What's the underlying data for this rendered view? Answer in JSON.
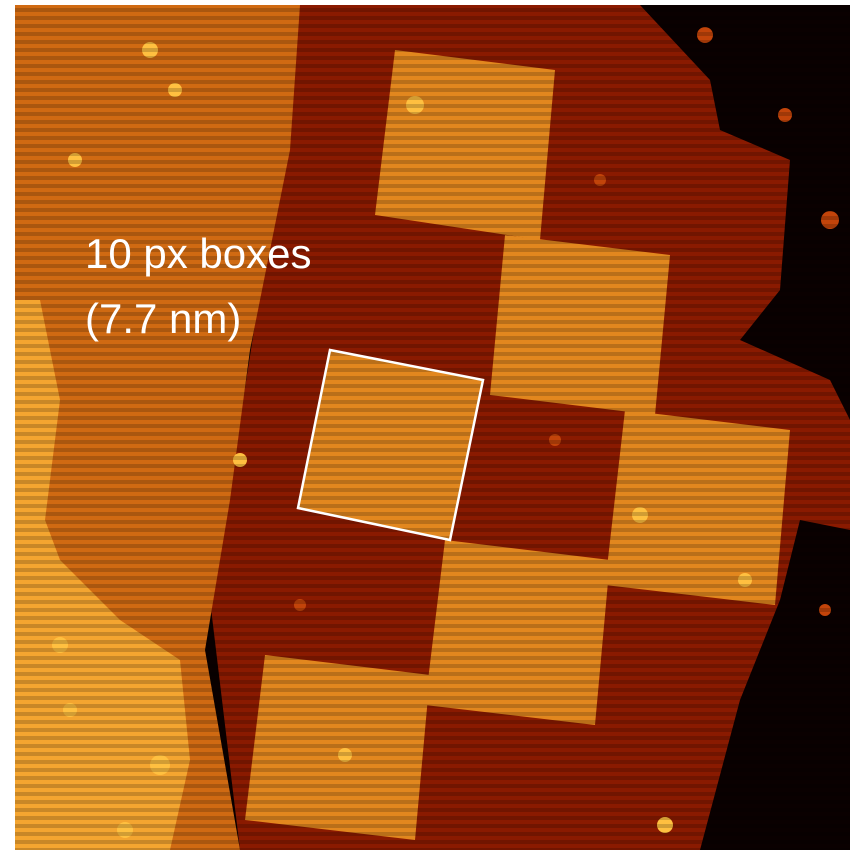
{
  "annotation": {
    "lines": [
      "10 px boxes",
      "(7.7 nm)"
    ]
  }
}
